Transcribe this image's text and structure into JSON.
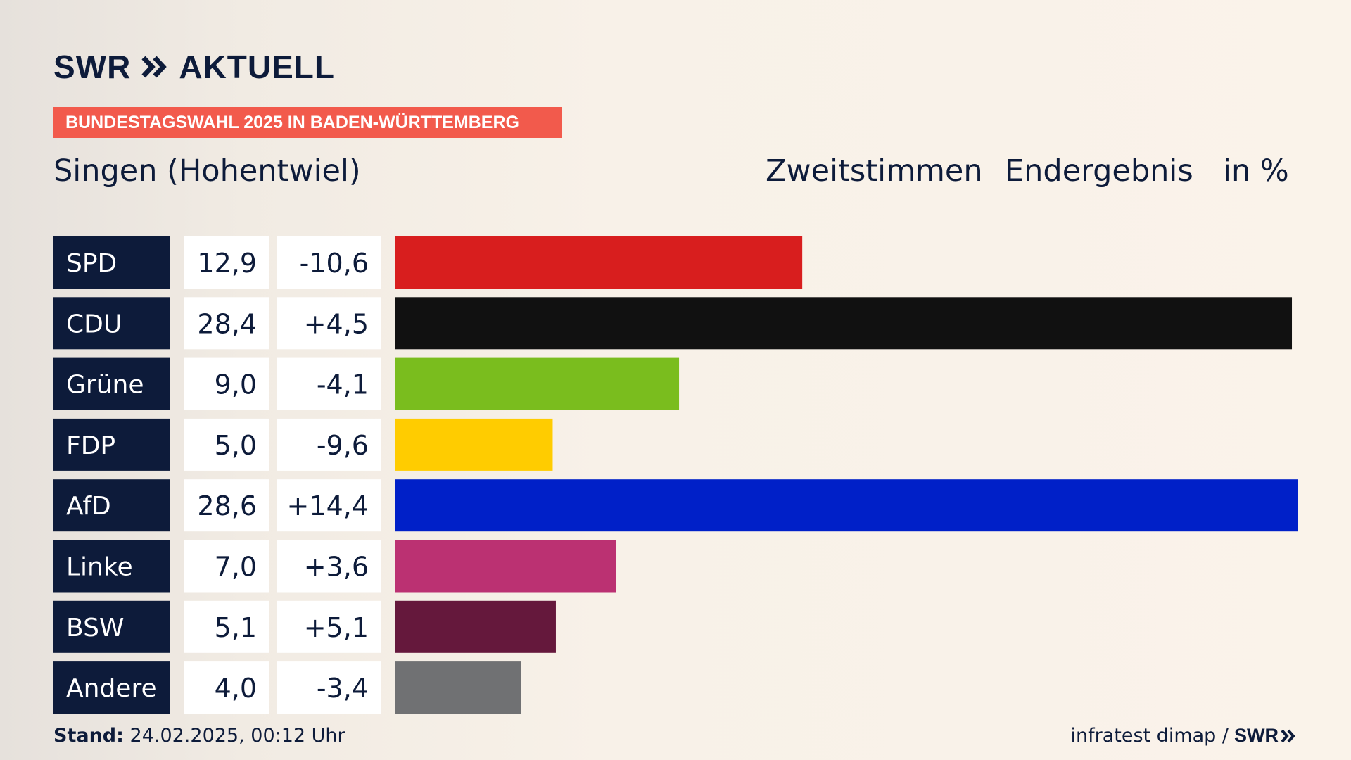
{
  "brand": {
    "name": "SWR",
    "product": "AKTUELL"
  },
  "banner": "BUNDESTAGSWAHL 2025 IN BADEN-WÜRTTEMBERG",
  "place": "Singen (Hohentwiel)",
  "header": {
    "vote_type": "Zweitstimmen",
    "status": "Endergebnis",
    "unit": "in %"
  },
  "footer": {
    "stand_label": "Stand:",
    "stand_value": "24.02.2025, 00:12 Uhr",
    "source": "infratest dimap /",
    "source_brand": "SWR"
  },
  "colors": {
    "navy": "#0d1b3a",
    "banner": "#f25a4c"
  },
  "chart_data": {
    "type": "bar",
    "orientation": "horizontal",
    "categories": [
      "SPD",
      "CDU",
      "Grüne",
      "FDP",
      "AfD",
      "Linke",
      "BSW",
      "Andere"
    ],
    "series": [
      {
        "values": [
          12.9,
          28.4,
          9.0,
          5.0,
          28.6,
          7.0,
          5.1,
          4.0
        ]
      }
    ],
    "value_labels": [
      "12,9",
      "28,4",
      "9,0",
      "5,0",
      "28,6",
      "7,0",
      "5,1",
      "4,0"
    ],
    "change_labels": [
      "-10,6",
      "+4,5",
      "-4,1",
      "-9,6",
      "+14,4",
      "+3,6",
      "+5,1",
      "-3,4"
    ],
    "changes": [
      -10.6,
      4.5,
      -4.1,
      -9.6,
      14.4,
      3.6,
      5.1,
      -3.4
    ],
    "bar_colors": [
      "#d81e1e",
      "#111111",
      "#7abd1e",
      "#ffcc00",
      "#0020c8",
      "#bb3172",
      "#65183c",
      "#707173"
    ],
    "xlim": [
      0,
      28.6
    ],
    "grid": false,
    "legend": "none"
  }
}
